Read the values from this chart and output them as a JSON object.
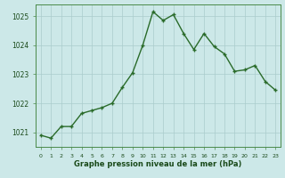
{
  "x": [
    0,
    1,
    2,
    3,
    4,
    5,
    6,
    7,
    8,
    9,
    10,
    11,
    12,
    13,
    14,
    15,
    16,
    17,
    18,
    19,
    20,
    21,
    22,
    23
  ],
  "y": [
    1020.9,
    1020.8,
    1021.2,
    1021.2,
    1021.65,
    1021.75,
    1021.85,
    1022.0,
    1022.55,
    1023.05,
    1024.0,
    1025.15,
    1024.85,
    1025.05,
    1024.4,
    1023.85,
    1024.4,
    1023.95,
    1023.7,
    1023.1,
    1023.15,
    1023.3,
    1022.75,
    1022.45
  ],
  "ylim": [
    1020.5,
    1025.4
  ],
  "yticks": [
    1021,
    1022,
    1023,
    1024,
    1025
  ],
  "xticks": [
    0,
    1,
    2,
    3,
    4,
    5,
    6,
    7,
    8,
    9,
    10,
    11,
    12,
    13,
    14,
    15,
    16,
    17,
    18,
    19,
    20,
    21,
    22,
    23
  ],
  "xlabel": "Graphe pression niveau de la mer (hPa)",
  "line_color": "#2a6b2a",
  "marker_color": "#2a6b2a",
  "bg_color": "#cce8e8",
  "plot_bg_color": "#cce8e8",
  "grid_color": "#aacccc",
  "tick_color": "#1a4a1a",
  "xlabel_color": "#1a4a1a"
}
